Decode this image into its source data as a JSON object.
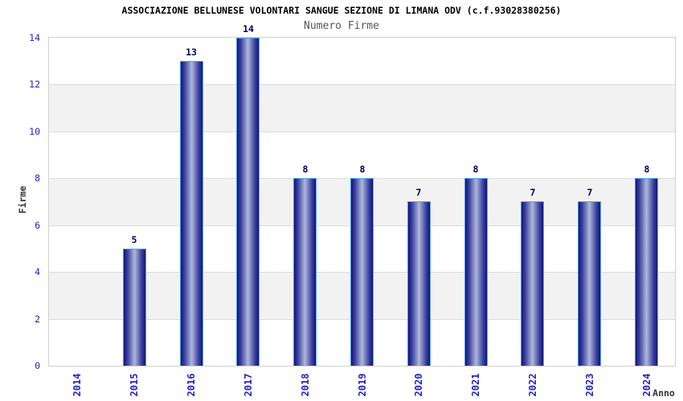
{
  "header": {
    "title": "ASSOCIAZIONE BELLUNESE VOLONTARI SANGUE SEZIONE DI LIMANA ODV (c.f.93028380256)",
    "subtitle": "Numero Firme"
  },
  "chart_data": {
    "type": "bar",
    "title": "ASSOCIAZIONE BELLUNESE VOLONTARI SANGUE SEZIONE DI LIMANA ODV (c.f.93028380256)",
    "subtitle": "Numero Firme",
    "categories": [
      "2014",
      "2015",
      "2016",
      "2017",
      "2018",
      "2019",
      "2020",
      "2021",
      "2022",
      "2023",
      "2024"
    ],
    "values": [
      0,
      5,
      13,
      14,
      8,
      8,
      7,
      8,
      7,
      7,
      8
    ],
    "xlabel": "Anno",
    "ylabel": "Firme",
    "ylim": [
      0,
      14
    ],
    "yticks": [
      0,
      2,
      4,
      6,
      8,
      10,
      12,
      14
    ],
    "grid": true,
    "legend": false,
    "gray_bands": [
      [
        2,
        4
      ],
      [
        6,
        8
      ],
      [
        10,
        12
      ]
    ],
    "colors": {
      "bar_edge_dark": "#131378",
      "bar_mid": "#3c42a0",
      "bar_center_light": "#b0b8da",
      "bar_border": "#4da0f0",
      "tick_label": "#2222cc",
      "value_label": "#000066",
      "band_gray": "#f2f2f2",
      "gridline": "#dcdcdc",
      "plot_border": "#d0d0d0",
      "axis_title": "#333333",
      "title_color": "#000000",
      "subtitle_color": "#555555"
    }
  }
}
